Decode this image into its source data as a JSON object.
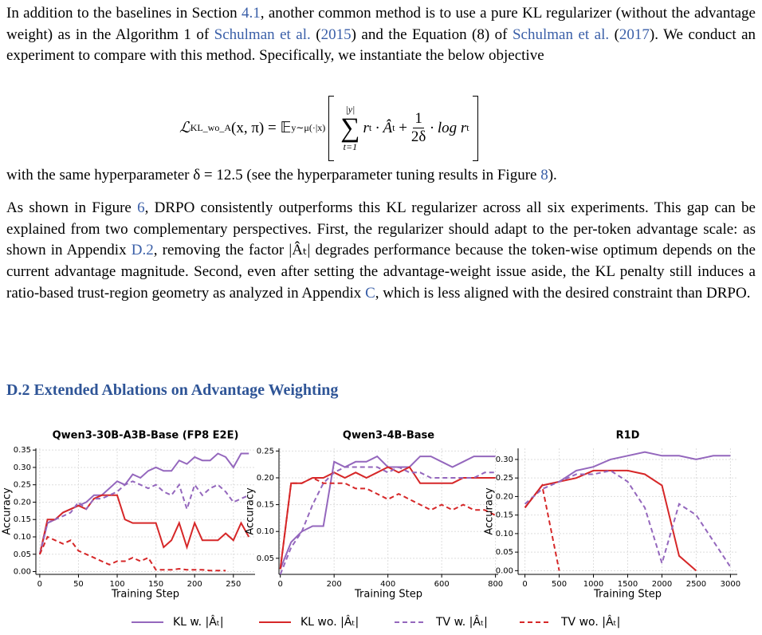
{
  "paragraphs": [
    [
      "In addition to the baselines in Section ",
      "4.1",
      ", another common method is to use a pure KL regularizer (without the advantage weight) as in the Algorithm 1 of ",
      "Schulman et al.",
      " (",
      "2015",
      ") and the Equation (8) of ",
      "Schulman et al.",
      " (",
      "2017",
      "). We conduct an experiment to compare with this method. Specifically, we instantiate the below objective"
    ],
    [
      "with the same hyperparameter δ = 12.5 (see the hyperparameter tuning results in Figure ",
      "8",
      ")."
    ],
    [
      "As shown in Figure ",
      "6",
      ", DRPO consistently outperforms this KL regularizer across all six experiments. This gap can be explained from two complementary perspectives. First, the regularizer should adapt to the per-token advantage scale: as shown in Appendix ",
      "D.2",
      ", removing the factor |Âₜ| degrades performance because the token-wise optimum depends on the current advantage magnitude. Second, even after setting the advantage-weight issue aside, the KL penalty still induces a ratio-based trust-region geometry as analyzed in Appendix ",
      "C",
      ", which is less aligned with the desired constraint than DRPO."
    ]
  ],
  "equation": {
    "lhs": "ℒ",
    "lhs_sub": "KL_wo_A",
    "lhs_rest": "(x, π) = 𝔼",
    "e_sub": "y∼μ(·|x)",
    "sum_top": "|y|",
    "sum_symbol": "∑",
    "sum_bottom": "t=1",
    "term": "r",
    "term_sub": "t",
    "times": "· Â",
    "a_sub": "t",
    "plus": "+",
    "frac_num": "1",
    "frac_den": "2δ",
    "rest": "· log r",
    "rest_sub": "t"
  },
  "heading": "D.2  Extended Ablations on Advantage Weighting",
  "chart_data": [
    {
      "type": "line",
      "title": "Qwen3-30B-A3B-Base (FP8 E2E)",
      "x_label": "Training Step",
      "y_label": "Accuracy",
      "grid": true,
      "x": [
        0,
        10,
        20,
        30,
        40,
        50,
        60,
        70,
        80,
        90,
        100,
        110,
        120,
        130,
        140,
        150,
        160,
        170,
        180,
        190,
        200,
        210,
        220,
        230,
        240,
        250,
        260,
        270
      ],
      "xlim": [
        -5,
        278
      ],
      "xticks": [
        0,
        50,
        100,
        150,
        200,
        250
      ],
      "ylim": [
        -0.008,
        0.355
      ],
      "yticks": [
        {
          "value": 0,
          "label": "0.00"
        },
        0.05,
        {
          "value": 0.1,
          "label": "0.10"
        },
        0.15,
        {
          "value": 0.2,
          "label": "0.20"
        },
        0.25,
        {
          "value": 0.3,
          "label": "0.30"
        },
        0.35
      ],
      "series": [
        {
          "name": "KL w. |Âₜ|",
          "color": "#9467bd",
          "linestyle": "solid",
          "values": [
            0.05,
            0.14,
            0.15,
            0.17,
            0.18,
            0.19,
            0.2,
            0.22,
            0.22,
            0.24,
            0.26,
            0.25,
            0.28,
            0.27,
            0.29,
            0.3,
            0.29,
            0.29,
            0.32,
            0.31,
            0.33,
            0.32,
            0.32,
            0.34,
            0.33,
            0.3,
            0.34,
            0.34
          ]
        },
        {
          "name": "KL wo. |Âₜ|",
          "color": "#d62728",
          "linestyle": "solid",
          "values": [
            0.05,
            0.15,
            0.15,
            0.17,
            0.18,
            0.19,
            0.18,
            0.21,
            0.22,
            0.22,
            0.22,
            0.15,
            0.14,
            0.14,
            0.14,
            0.14,
            0.07,
            0.09,
            0.14,
            0.07,
            0.14,
            0.09,
            0.09,
            0.09,
            0.11,
            0.09,
            0.14,
            0.1
          ]
        },
        {
          "name": "TV w. |Âₜ|",
          "color": "#9467bd",
          "linestyle": "dashed",
          "values": [
            0.05,
            0.14,
            0.15,
            0.16,
            0.17,
            0.2,
            0.18,
            0.21,
            0.21,
            0.22,
            0.23,
            0.25,
            0.26,
            0.25,
            0.24,
            0.25,
            0.23,
            0.22,
            0.25,
            0.18,
            0.25,
            0.22,
            0.24,
            0.25,
            0.23,
            0.2,
            0.21,
            0.22
          ]
        },
        {
          "name": "TV wo. |Âₜ|",
          "color": "#d62728",
          "linestyle": "dashed",
          "values": [
            0.05,
            0.1,
            0.09,
            0.08,
            0.09,
            0.06,
            0.05,
            0.04,
            0.03,
            0.02,
            0.03,
            0.03,
            0.04,
            0.03,
            0.04,
            0.005,
            0.005,
            0.005,
            0.008,
            0.005,
            0.005,
            0.005,
            0.003,
            0.003,
            0.003,
            null,
            null,
            null
          ]
        }
      ]
    },
    {
      "type": "line",
      "title": "Qwen3-4B-Base",
      "x_label": "Training Step",
      "y_label": "Accuracy",
      "grid": true,
      "x": [
        0,
        40,
        80,
        120,
        160,
        200,
        240,
        280,
        320,
        360,
        400,
        440,
        480,
        520,
        560,
        600,
        640,
        680,
        720,
        760,
        800
      ],
      "xlim": [
        -5,
        810
      ],
      "xticks": [
        0,
        200,
        400,
        600,
        800
      ],
      "ylim": [
        0.02,
        0.255
      ],
      "yticks": [
        0.05,
        {
          "value": 0.1,
          "label": "0.10"
        },
        0.15,
        {
          "value": 0.2,
          "label": "0.20"
        },
        0.25
      ],
      "series": [
        {
          "name": "KL w. |Âₜ|",
          "color": "#9467bd",
          "linestyle": "solid",
          "values": [
            0.03,
            0.08,
            0.1,
            0.11,
            0.11,
            0.23,
            0.22,
            0.23,
            0.23,
            0.24,
            0.22,
            0.22,
            0.22,
            0.24,
            0.24,
            0.23,
            0.22,
            0.23,
            0.24,
            0.24,
            0.24
          ]
        },
        {
          "name": "KL wo. |Âₜ|",
          "color": "#d62728",
          "linestyle": "solid",
          "values": [
            0.03,
            0.19,
            0.19,
            0.2,
            0.2,
            0.21,
            0.2,
            0.21,
            0.2,
            0.21,
            0.22,
            0.21,
            0.22,
            0.19,
            0.19,
            0.19,
            0.19,
            0.2,
            0.2,
            0.2,
            0.2
          ]
        },
        {
          "name": "TV w. |Âₜ|",
          "color": "#9467bd",
          "linestyle": "dashed",
          "values": [
            0.02,
            0.07,
            0.1,
            0.15,
            0.19,
            0.21,
            0.22,
            0.22,
            0.22,
            0.22,
            0.21,
            0.22,
            0.21,
            0.21,
            0.2,
            0.2,
            0.2,
            0.2,
            0.2,
            0.21,
            0.21
          ]
        },
        {
          "name": "TV wo. |Âₜ|",
          "color": "#d62728",
          "linestyle": "dashed",
          "values": [
            0.03,
            0.19,
            0.19,
            0.2,
            0.19,
            0.19,
            0.19,
            0.18,
            0.18,
            0.17,
            0.16,
            0.17,
            0.16,
            0.15,
            0.14,
            0.15,
            0.14,
            0.15,
            0.14,
            0.14,
            0.13
          ]
        }
      ]
    },
    {
      "type": "line",
      "title": "R1D",
      "x_label": "Training Step",
      "y_label": "Accuracy",
      "grid": true,
      "x": [
        0,
        250,
        500,
        750,
        1000,
        1250,
        1500,
        1750,
        2000,
        2250,
        2500,
        2750,
        3000
      ],
      "xlim": [
        -100,
        3100
      ],
      "xticks": [
        0,
        500,
        1000,
        1500,
        2000,
        2500,
        3000
      ],
      "ylim": [
        -0.01,
        0.33
      ],
      "yticks": [
        {
          "value": 0,
          "label": "0.00"
        },
        0.05,
        {
          "value": 0.1,
          "label": "0.10"
        },
        0.15,
        {
          "value": 0.2,
          "label": "0.20"
        },
        0.25,
        {
          "value": 0.3,
          "label": "0.30"
        }
      ],
      "series": [
        {
          "name": "KL w. |Âₜ|",
          "color": "#9467bd",
          "linestyle": "solid",
          "values": [
            0.17,
            0.23,
            0.24,
            0.27,
            0.28,
            0.3,
            0.31,
            0.32,
            0.31,
            0.31,
            0.3,
            0.31,
            0.31
          ]
        },
        {
          "name": "KL wo. |Âₜ|",
          "color": "#d62728",
          "linestyle": "solid",
          "values": [
            0.17,
            0.23,
            0.24,
            0.25,
            0.27,
            0.27,
            0.27,
            0.26,
            0.23,
            0.04,
            0,
            null,
            null
          ]
        },
        {
          "name": "TV w. |Âₜ|",
          "color": "#9467bd",
          "linestyle": "dashed",
          "values": [
            0.18,
            0.22,
            0.24,
            0.26,
            0.26,
            0.27,
            0.24,
            0.17,
            0.02,
            0.18,
            0.15,
            0.08,
            0.01
          ]
        },
        {
          "name": "TV wo. |Âₜ|",
          "color": "#d62728",
          "linestyle": "dashed",
          "values": [
            0.17,
            0.23,
            0,
            null,
            null,
            null,
            null,
            null,
            null,
            null,
            null,
            null,
            null
          ]
        }
      ]
    }
  ]
}
